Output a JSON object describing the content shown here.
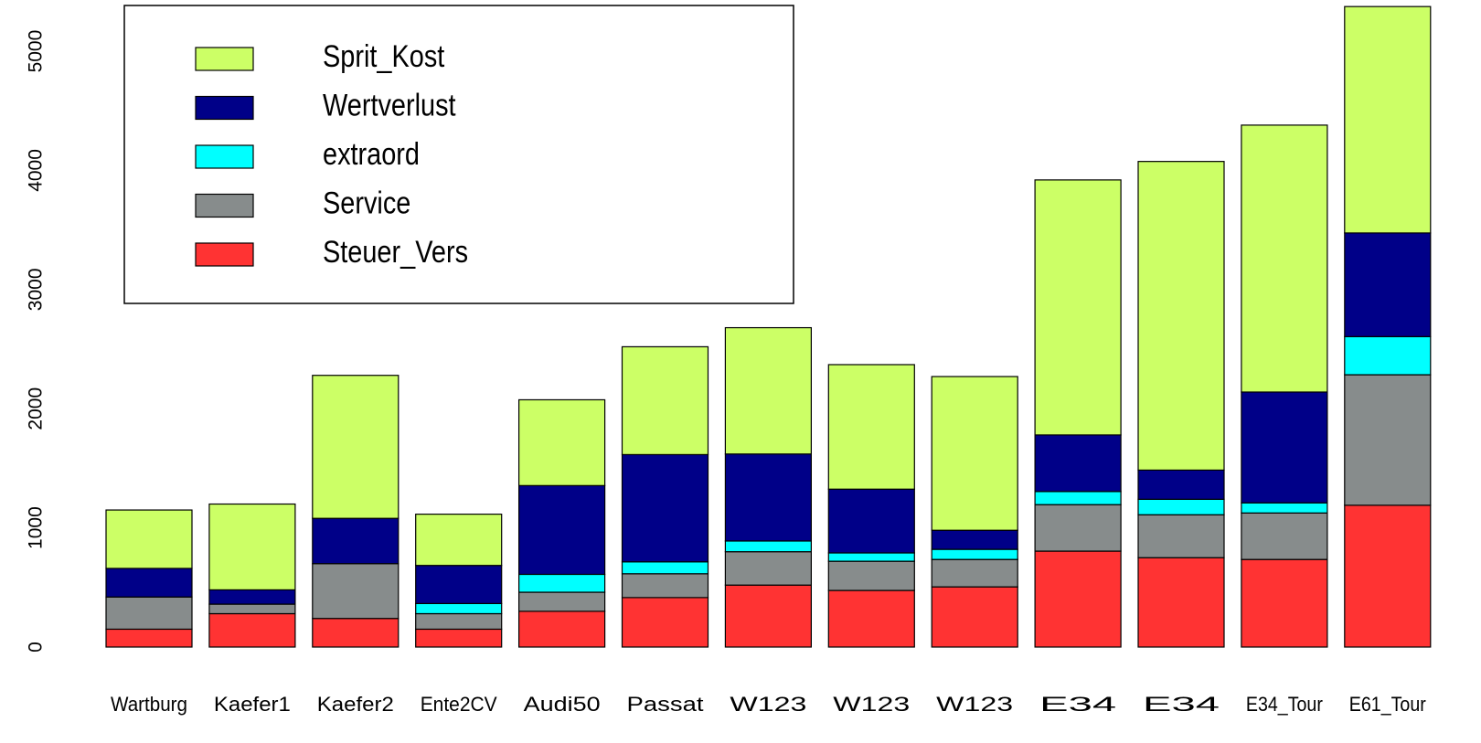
{
  "chart_data": {
    "type": "stacked_bar",
    "categories": [
      "Wartburg",
      "Kaefer1",
      "Kaefer2",
      "Ente2CV",
      "Audi50",
      "Passat",
      "W123",
      "W123",
      "W123",
      "E34",
      "E34",
      "E34_Tour",
      "E61_Tour"
    ],
    "series": [
      {
        "name": "Steuer_Vers",
        "color": "#ff3333",
        "values": [
          150,
          280,
          240,
          150,
          300,
          415,
          520,
          475,
          505,
          805,
          750,
          735,
          1190
        ]
      },
      {
        "name": "Service",
        "color": "#878c8c",
        "values": [
          270,
          80,
          460,
          130,
          160,
          200,
          280,
          245,
          230,
          390,
          360,
          390,
          1095
        ]
      },
      {
        "name": "extraord",
        "color": "#00ffff",
        "values": [
          0,
          0,
          0,
          85,
          150,
          100,
          90,
          70,
          85,
          110,
          130,
          85,
          320
        ]
      },
      {
        "name": "Wertverlust",
        "color": "#000088",
        "values": [
          240,
          120,
          380,
          320,
          745,
          900,
          730,
          535,
          160,
          475,
          245,
          930,
          870
        ]
      },
      {
        "name": "Sprit_Kost",
        "color": "#ccff66",
        "values": [
          490,
          720,
          1200,
          430,
          720,
          905,
          1060,
          1045,
          1290,
          2140,
          2590,
          2240,
          1900
        ]
      }
    ],
    "ylim": [
      0,
      5430
    ],
    "yticks": [
      0,
      1000,
      2000,
      3000,
      4000,
      5000
    ],
    "legend": "top-left"
  }
}
